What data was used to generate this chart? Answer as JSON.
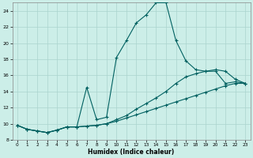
{
  "xlabel": "Humidex (Indice chaleur)",
  "background_color": "#cceee8",
  "grid_color": "#aad4ce",
  "line_color": "#006060",
  "xlim": [
    -0.5,
    23.5
  ],
  "ylim": [
    8,
    25
  ],
  "yticks": [
    8,
    10,
    12,
    14,
    16,
    18,
    20,
    22,
    24
  ],
  "xticks": [
    0,
    1,
    2,
    3,
    4,
    5,
    6,
    7,
    8,
    9,
    10,
    11,
    12,
    13,
    14,
    15,
    16,
    17,
    18,
    19,
    20,
    21,
    22,
    23
  ],
  "series": [
    {
      "x": [
        0,
        1,
        2,
        3,
        4,
        5,
        6,
        7,
        8,
        9,
        10,
        11,
        12,
        13,
        14,
        15,
        16,
        17,
        18,
        19,
        20,
        21,
        22,
        23
      ],
      "y": [
        9.8,
        9.3,
        9.1,
        8.9,
        9.2,
        9.6,
        9.6,
        14.5,
        10.5,
        10.8,
        18.2,
        20.3,
        22.5,
        23.5,
        25.0,
        25.0,
        20.3,
        17.8,
        16.7,
        16.5,
        16.5,
        15.0,
        15.2,
        15.0
      ]
    },
    {
      "x": [
        0,
        1,
        2,
        3,
        4,
        5,
        6,
        7,
        8,
        9,
        10,
        11,
        12,
        13,
        14,
        15,
        16,
        17,
        18,
        19,
        20,
        21,
        22,
        23
      ],
      "y": [
        9.8,
        9.3,
        9.1,
        8.9,
        9.2,
        9.6,
        9.6,
        9.7,
        9.8,
        10.0,
        10.5,
        11.0,
        11.8,
        12.5,
        13.2,
        14.0,
        15.0,
        15.8,
        16.2,
        16.5,
        16.7,
        16.5,
        15.5,
        15.0
      ]
    },
    {
      "x": [
        0,
        1,
        2,
        3,
        4,
        5,
        6,
        7,
        8,
        9,
        10,
        11,
        12,
        13,
        14,
        15,
        16,
        17,
        18,
        19,
        20,
        21,
        22,
        23
      ],
      "y": [
        9.8,
        9.3,
        9.1,
        8.9,
        9.2,
        9.6,
        9.6,
        9.7,
        9.8,
        10.0,
        10.3,
        10.7,
        11.1,
        11.5,
        11.9,
        12.3,
        12.7,
        13.1,
        13.5,
        13.9,
        14.3,
        14.7,
        15.0,
        15.0
      ]
    }
  ]
}
